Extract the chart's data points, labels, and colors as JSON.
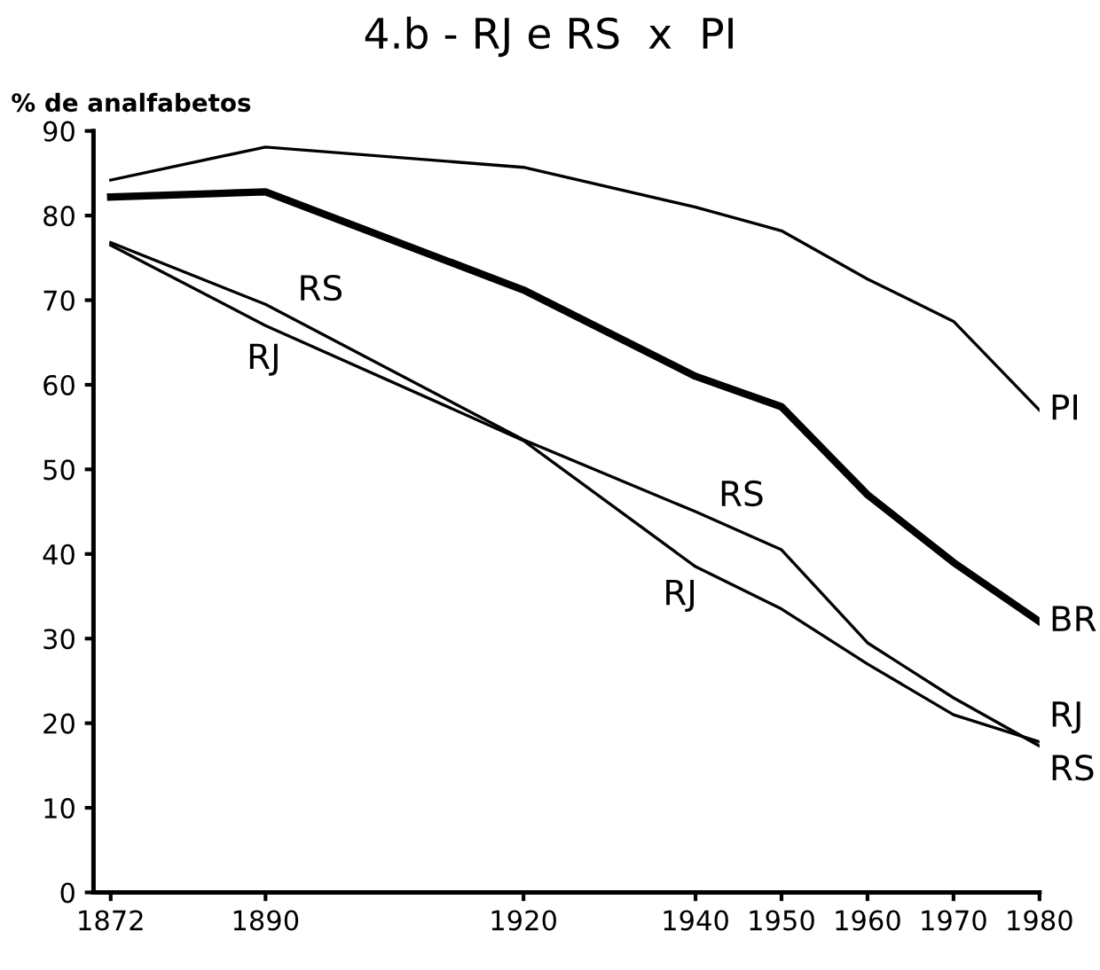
{
  "chart_data": {
    "type": "line",
    "title": "4.b - RJ e RS  x  PI",
    "ylabel": "% de analfabetos",
    "x": [
      1872,
      1890,
      1920,
      1940,
      1950,
      1960,
      1970,
      1980
    ],
    "series": [
      {
        "name": "PI",
        "color": "#000000",
        "values": [
          84.2,
          88.1,
          85.7,
          81,
          78.2,
          72.5,
          67.5,
          57
        ]
      },
      {
        "name": "BR",
        "color": "#000000",
        "values": [
          82.2,
          82.8,
          71.2,
          61,
          57.4,
          47,
          39,
          32
        ]
      },
      {
        "name": "RJ",
        "color": "#000000",
        "values": [
          76.5,
          67,
          53.4,
          38.5,
          33.5,
          27,
          21,
          17.8
        ]
      },
      {
        "name": "RS",
        "color": "#000000",
        "values": [
          76.8,
          69.5,
          53.5,
          45,
          40.5,
          29.5,
          23,
          17.3
        ]
      }
    ],
    "annotations": [
      "RS",
      "RJ",
      "RS",
      "RJ"
    ],
    "xlim": [
      1870,
      1980
    ],
    "ylim": [
      0,
      90
    ],
    "xticks": [
      1872,
      1890,
      1920,
      1940,
      1950,
      1960,
      1970,
      1980
    ],
    "yticks": [
      0,
      10,
      20,
      30,
      40,
      50,
      60,
      70,
      80,
      90
    ],
    "grid": false,
    "legend": false,
    "marker": "none",
    "line_style": "solid"
  }
}
